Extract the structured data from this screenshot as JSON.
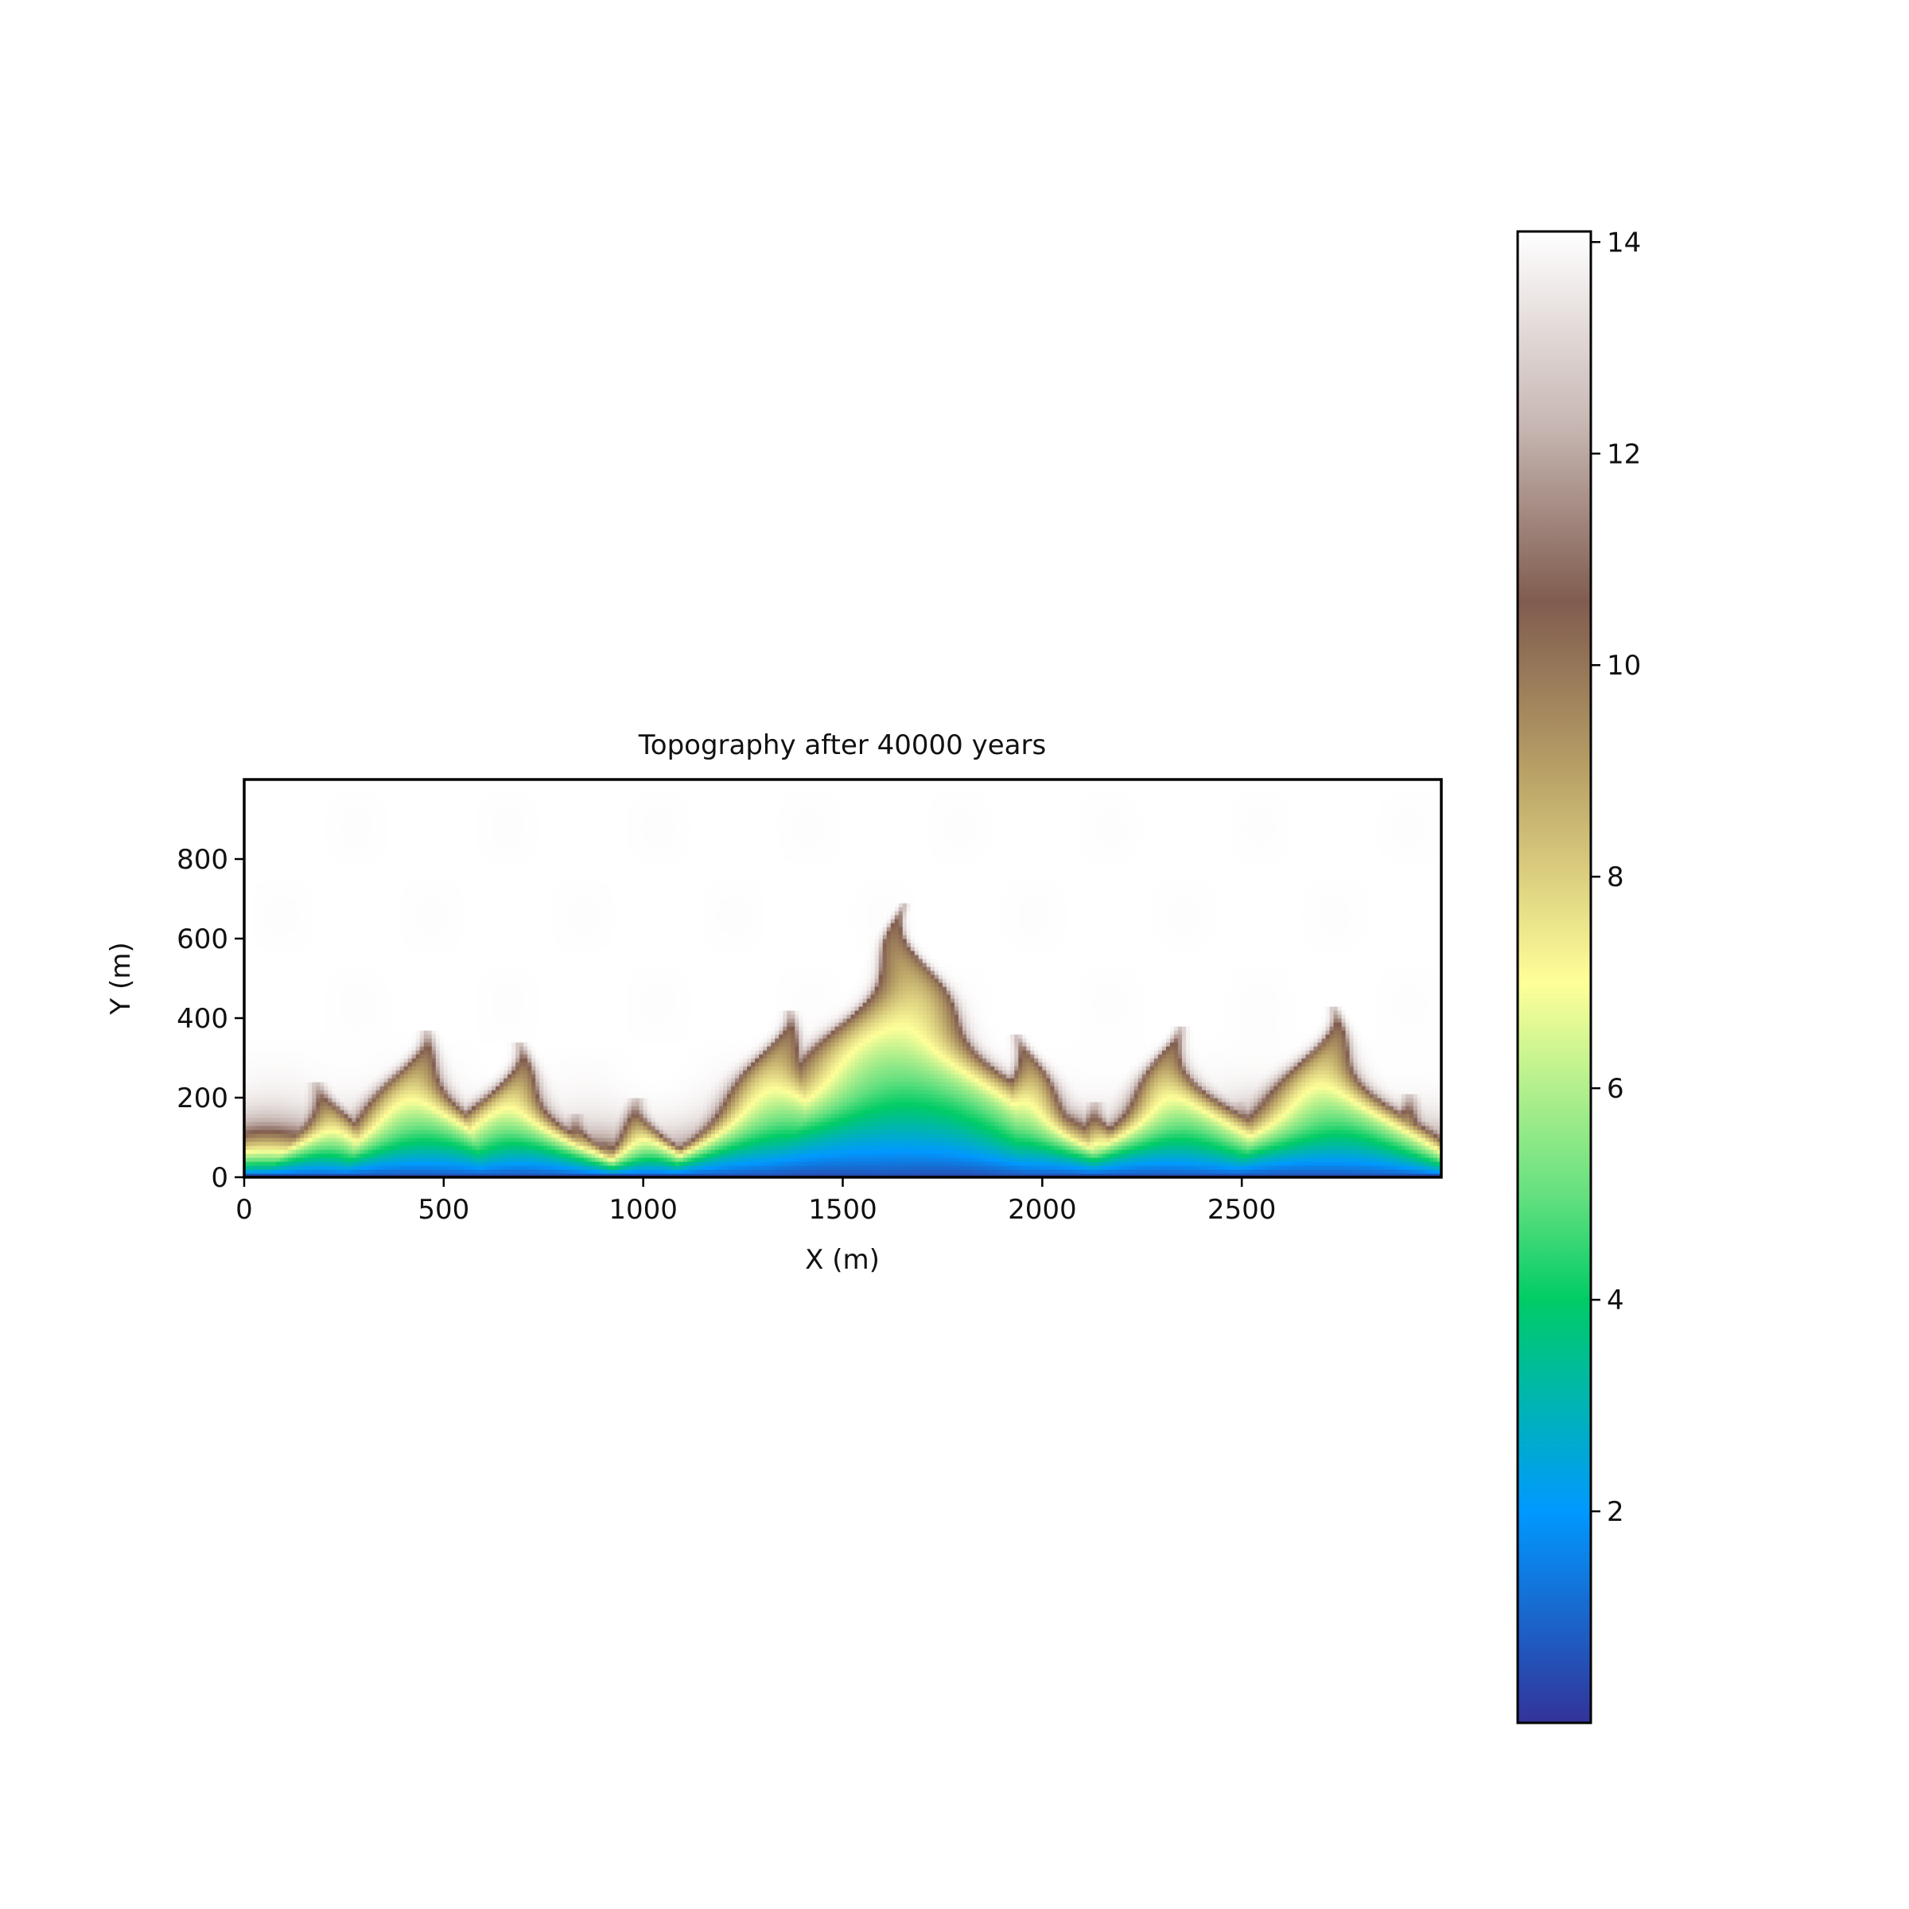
{
  "chart_data": {
    "type": "heatmap",
    "title": "Topography after 40000 years",
    "xlabel": "X (m)",
    "ylabel": "Y (m)",
    "xlim": [
      0,
      3000
    ],
    "ylim": [
      0,
      1000
    ],
    "xticks": [
      0,
      500,
      1000,
      1500,
      2000,
      2500
    ],
    "yticks": [
      0,
      200,
      400,
      600,
      800
    ],
    "colorbar": {
      "range": [
        0,
        14.1
      ],
      "ticks": [
        2,
        4,
        6,
        8,
        10,
        12,
        14
      ],
      "colormap": "terrain",
      "stops": [
        {
          "v": 0.0,
          "color": "#333399"
        },
        {
          "v": 2.0,
          "color": "#0099ff"
        },
        {
          "v": 3.0,
          "color": "#00b4b4"
        },
        {
          "v": 4.0,
          "color": "#00cc66"
        },
        {
          "v": 5.0,
          "color": "#66e080"
        },
        {
          "v": 7.0,
          "color": "#ffff99"
        },
        {
          "v": 9.0,
          "color": "#b8a066"
        },
        {
          "v": 10.6,
          "color": "#805c4f"
        },
        {
          "v": 12.3,
          "color": "#c8b8b4"
        },
        {
          "v": 14.1,
          "color": "#ffffff"
        }
      ]
    },
    "description_grid": "elevation field on 3000 x 1000 m domain; low elevation (0-6) along y≈0 outlet edge, dendritic valleys cut up to ~650 m near x≈1650, plateau ~14 above",
    "channel_heads": [
      {
        "x": 60,
        "y": 110
      },
      {
        "x": 200,
        "y": 200
      },
      {
        "x": 330,
        "y": 120
      },
      {
        "x": 440,
        "y": 330
      },
      {
        "x": 680,
        "y": 300
      },
      {
        "x": 850,
        "y": 120
      },
      {
        "x": 1000,
        "y": 160
      },
      {
        "x": 1200,
        "y": 130
      },
      {
        "x": 1350,
        "y": 380
      },
      {
        "x": 1650,
        "y": 650
      },
      {
        "x": 1950,
        "y": 320
      },
      {
        "x": 2150,
        "y": 150
      },
      {
        "x": 2330,
        "y": 340
      },
      {
        "x": 2500,
        "y": 150
      },
      {
        "x": 2720,
        "y": 390
      },
      {
        "x": 2900,
        "y": 170
      }
    ]
  }
}
